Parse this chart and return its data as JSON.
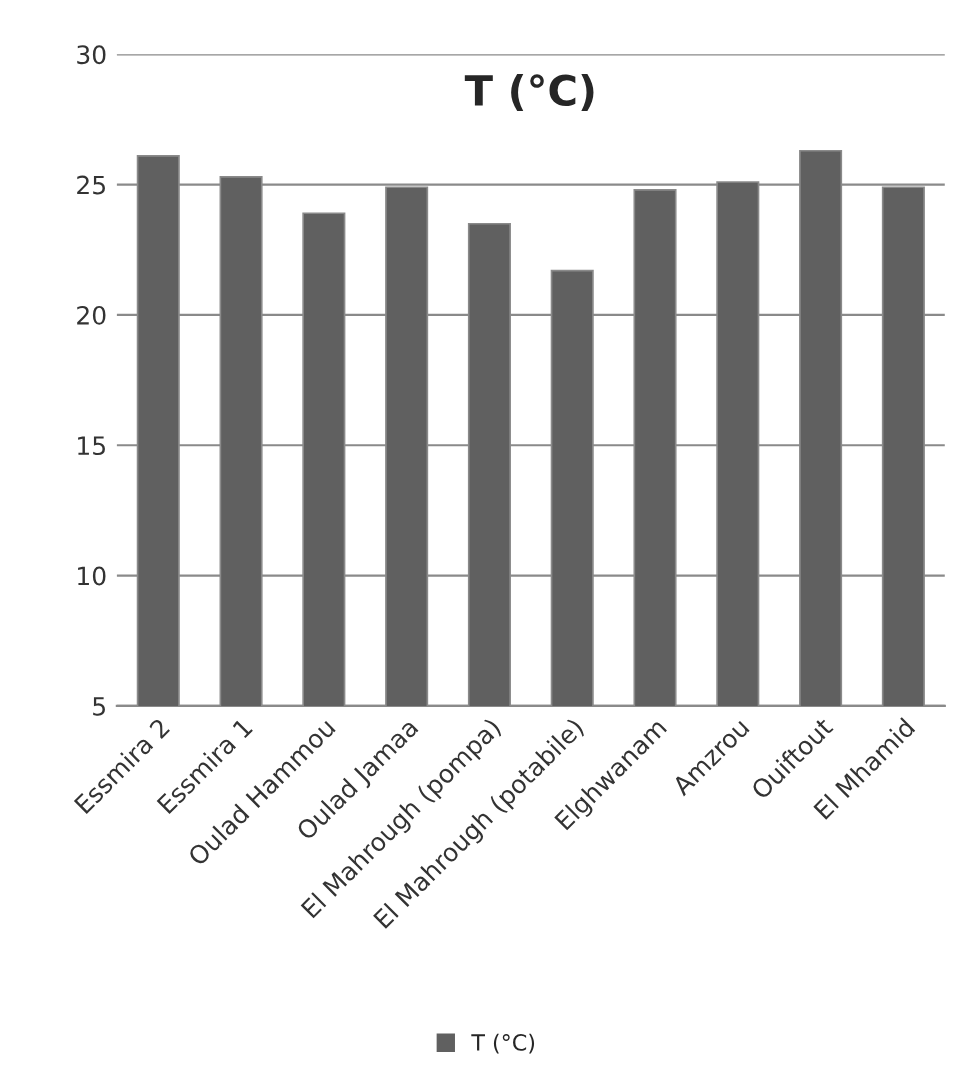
{
  "chart_data": {
    "type": "bar",
    "title": "T (°C)",
    "categories": [
      "Essmira 2",
      "Essmira 1",
      "Oulad Hammou",
      "Oulad Jamaa",
      "El Mahrough (pompa)",
      "El Mahrough (potabile)",
      "Elghwanam",
      "Amzrou",
      "Ouiftout",
      "El Mhamid"
    ],
    "series": [
      {
        "name": "T (°C)",
        "color": "#606060",
        "values": [
          26.1,
          25.3,
          23.9,
          24.9,
          23.5,
          21.7,
          24.8,
          25.1,
          26.3,
          24.9
        ]
      }
    ],
    "ylim": [
      5,
      30
    ],
    "yticks": [
      5,
      10,
      15,
      20,
      25,
      30
    ],
    "grid": "y",
    "legend": "bottom"
  }
}
